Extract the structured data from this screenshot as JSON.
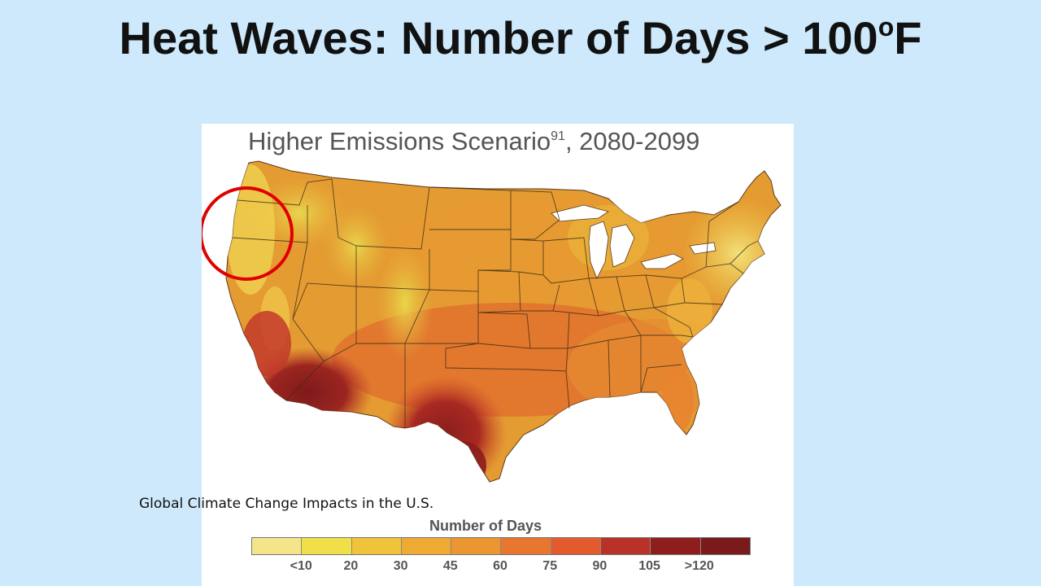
{
  "slide": {
    "title": "Heat Waves: Number of Days > 100",
    "title_superscript": "o",
    "title_suffix": "F",
    "background_color": "#cde9fb"
  },
  "map": {
    "heading": "Higher Emissions Scenario",
    "heading_superscript": "91",
    "heading_suffix": ", 2080-2099",
    "highlight_circle_color": "#e00000"
  },
  "legend": {
    "title": "Number of Days",
    "ticks": [
      "<10",
      "20",
      "30",
      "45",
      "60",
      "75",
      "90",
      "105",
      ">120"
    ],
    "colors": [
      "#f4e58a",
      "#f1df4a",
      "#efc43a",
      "#eeaa33",
      "#eb9630",
      "#e8762e",
      "#e35a2c",
      "#b83228",
      "#8e1e1e",
      "#7a1a1a"
    ]
  },
  "source": {
    "caption": "Global Climate Change Impacts in the U.S."
  }
}
